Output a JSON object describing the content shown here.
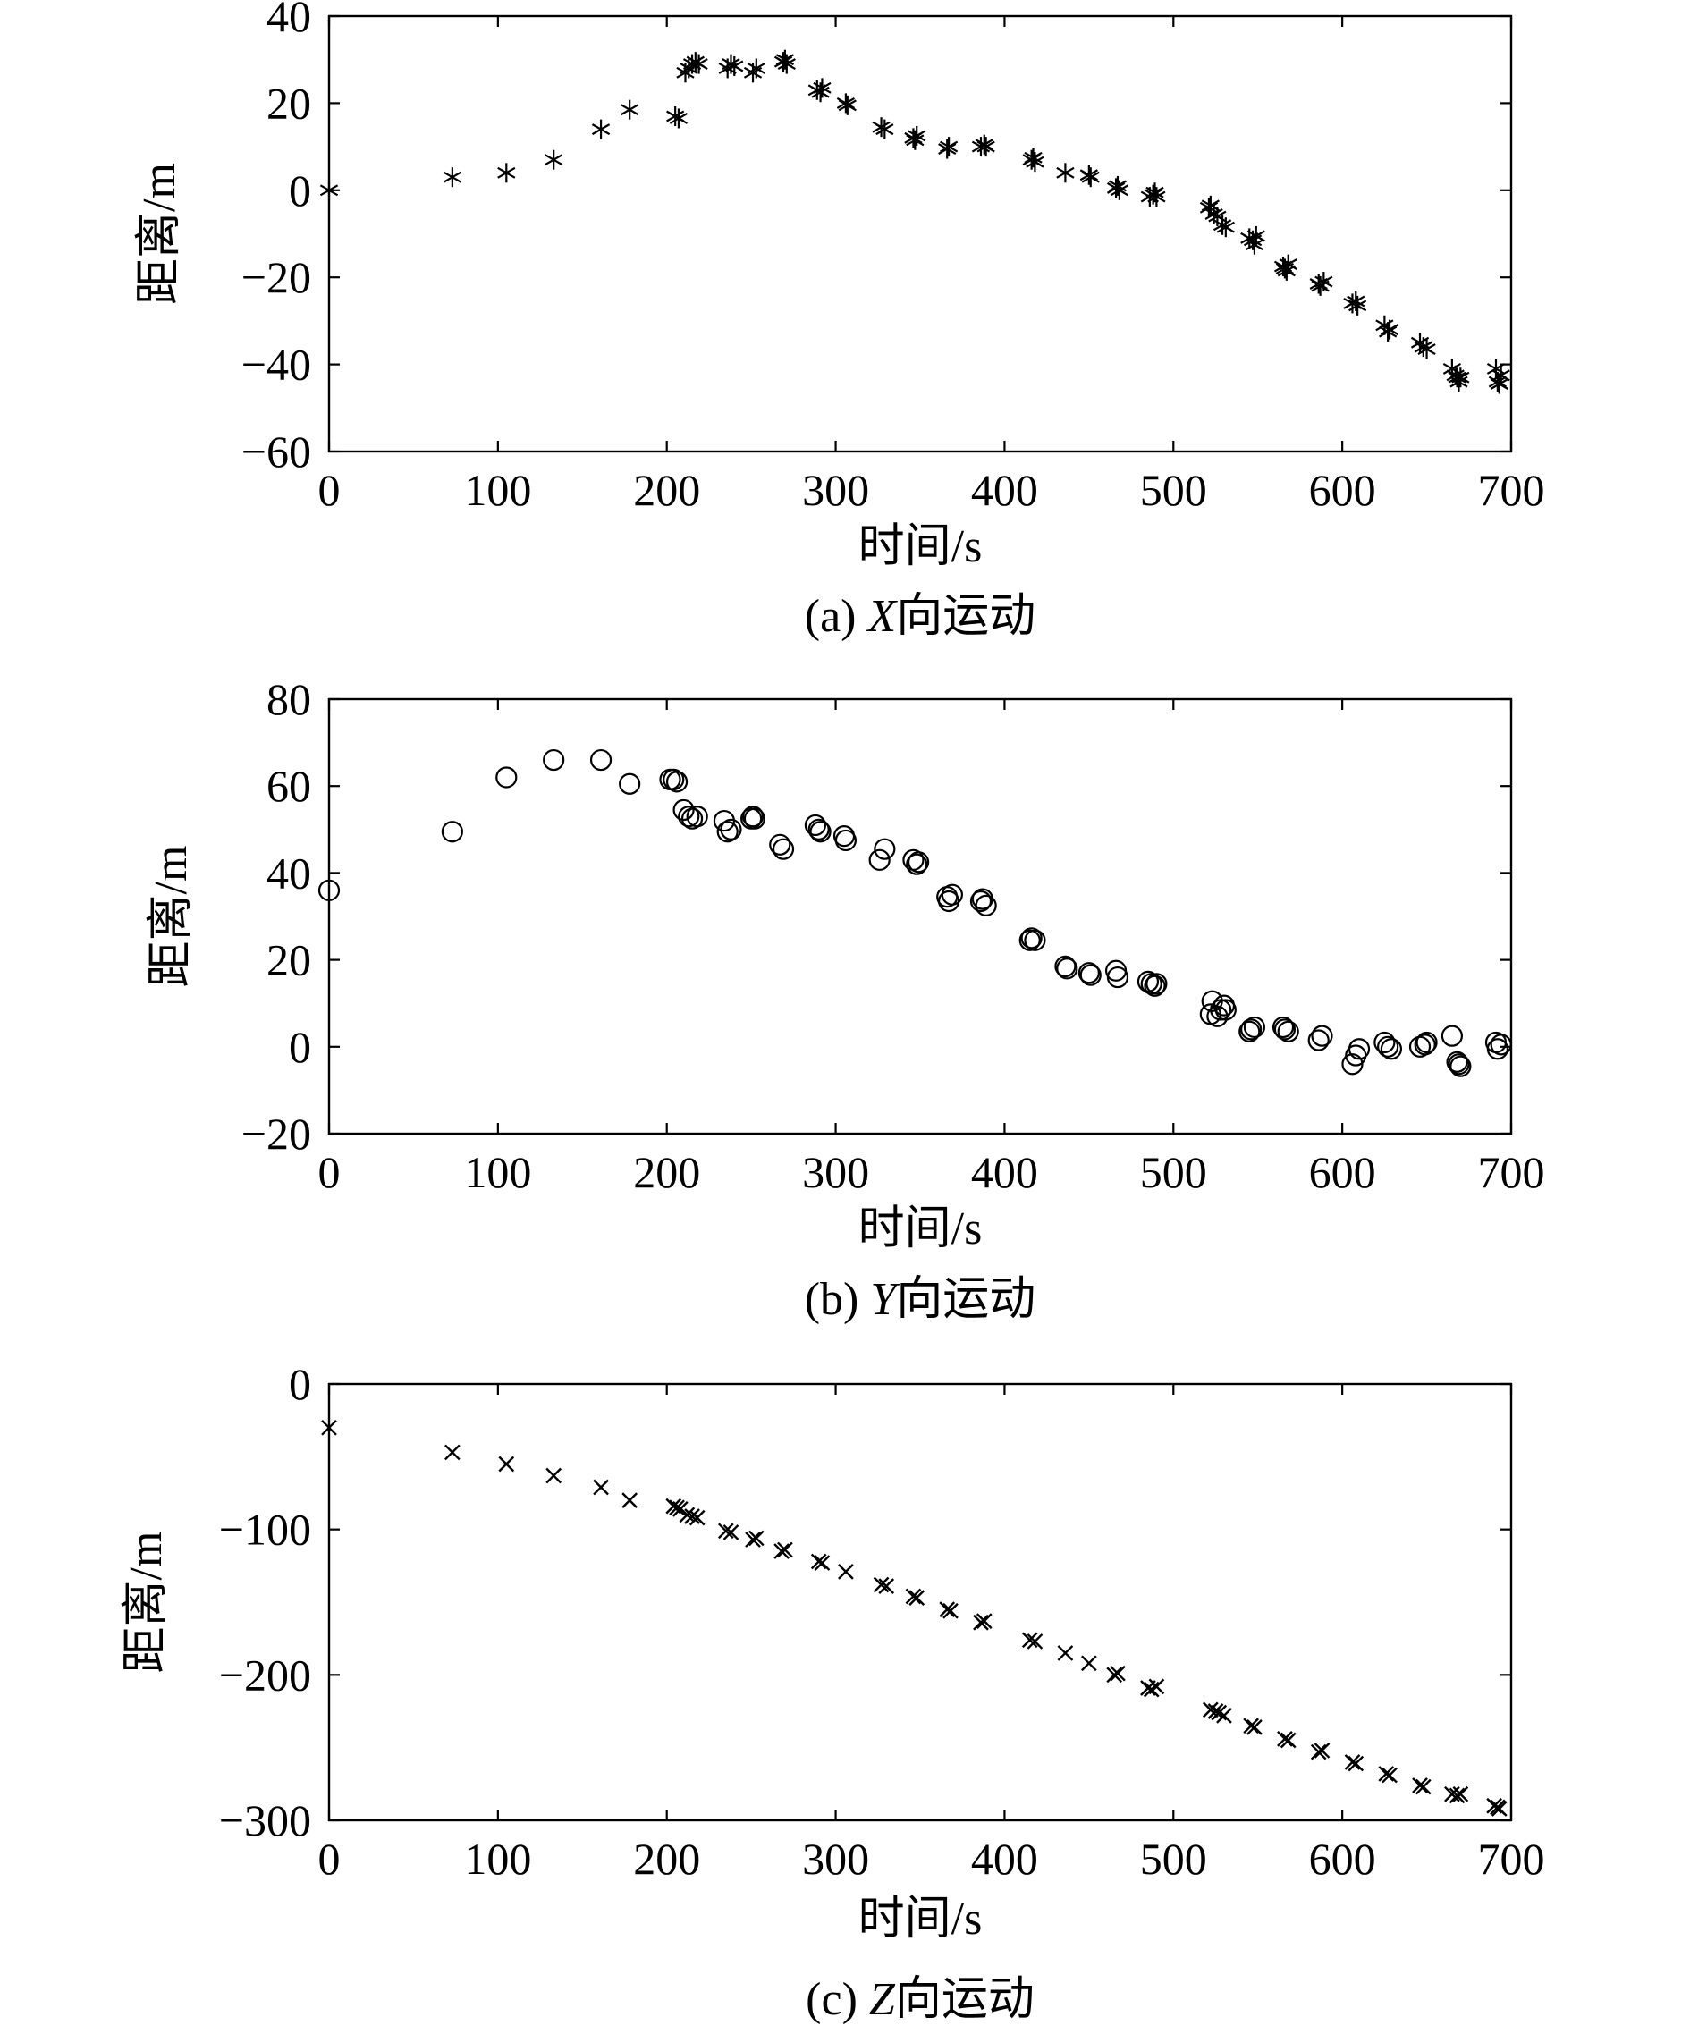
{
  "chart_data": [
    {
      "type": "scatter",
      "marker": "asterisk",
      "caption_prefix": "(a) ",
      "caption_var": "X",
      "caption_suffix": "向运动",
      "xlabel": "时间/s",
      "ylabel": "距离/m",
      "xlim": [
        0,
        700
      ],
      "ylim": [
        -60,
        40
      ],
      "xticks": [
        0,
        100,
        200,
        300,
        400,
        500,
        600,
        700
      ],
      "yticks": [
        -60,
        -40,
        -20,
        0,
        20,
        40
      ],
      "points": [
        [
          0,
          0
        ],
        [
          73,
          3
        ],
        [
          105,
          4
        ],
        [
          133,
          7
        ],
        [
          161,
          14
        ],
        [
          178,
          18.5
        ],
        [
          205,
          17
        ],
        [
          207,
          16.5
        ],
        [
          211,
          27
        ],
        [
          213,
          28
        ],
        [
          215,
          29
        ],
        [
          217,
          29.5
        ],
        [
          219,
          29
        ],
        [
          236,
          28
        ],
        [
          238,
          29
        ],
        [
          240,
          28.5
        ],
        [
          251,
          27
        ],
        [
          253,
          28
        ],
        [
          269,
          29.5
        ],
        [
          270,
          30
        ],
        [
          271,
          29
        ],
        [
          289,
          23
        ],
        [
          291,
          22.5
        ],
        [
          292,
          23.5
        ],
        [
          306,
          20
        ],
        [
          307,
          19.5
        ],
        [
          327,
          14.5
        ],
        [
          329,
          14
        ],
        [
          346,
          12
        ],
        [
          347,
          11.5
        ],
        [
          348,
          12.5
        ],
        [
          366,
          9.5
        ],
        [
          367,
          10
        ],
        [
          386,
          10
        ],
        [
          388,
          10.5
        ],
        [
          389,
          10
        ],
        [
          416,
          7
        ],
        [
          417,
          7.5
        ],
        [
          418,
          6.5
        ],
        [
          436,
          4
        ],
        [
          450,
          3.5
        ],
        [
          451,
          3
        ],
        [
          466,
          0.5
        ],
        [
          467,
          1
        ],
        [
          468,
          0
        ],
        [
          486,
          -1.5
        ],
        [
          488,
          -1
        ],
        [
          489,
          -0.5
        ],
        [
          490,
          -1.5
        ],
        [
          521,
          -4
        ],
        [
          522,
          -3.5
        ],
        [
          524,
          -5.5
        ],
        [
          526,
          -6
        ],
        [
          529,
          -8
        ],
        [
          531,
          -8.5
        ],
        [
          545,
          -11
        ],
        [
          547,
          -11.5
        ],
        [
          548,
          -12.5
        ],
        [
          549,
          -10.5
        ],
        [
          565,
          -17.5
        ],
        [
          566,
          -18
        ],
        [
          567,
          -18.5
        ],
        [
          568,
          -17
        ],
        [
          586,
          -21.5
        ],
        [
          587,
          -22
        ],
        [
          589,
          -21
        ],
        [
          606,
          -26
        ],
        [
          608,
          -25.5
        ],
        [
          609,
          -26.5
        ],
        [
          625,
          -31
        ],
        [
          627,
          -32.5
        ],
        [
          628,
          -32
        ],
        [
          646,
          -35
        ],
        [
          648,
          -36
        ],
        [
          650,
          -36.5
        ],
        [
          665,
          -41
        ],
        [
          667,
          -42.5
        ],
        [
          668,
          -43
        ],
        [
          669,
          -44
        ],
        [
          670,
          -43
        ],
        [
          691,
          -41
        ],
        [
          692,
          -44
        ],
        [
          693,
          -44.5
        ],
        [
          694,
          -42.5
        ]
      ]
    },
    {
      "type": "scatter",
      "marker": "circle",
      "caption_prefix": "(b) ",
      "caption_var": "Y",
      "caption_suffix": "向运动",
      "xlabel": "时间/s",
      "ylabel": "距离/m",
      "xlim": [
        0,
        700
      ],
      "ylim": [
        -20,
        80
      ],
      "xticks": [
        0,
        100,
        200,
        300,
        400,
        500,
        600,
        700
      ],
      "yticks": [
        -20,
        0,
        20,
        40,
        60,
        80
      ],
      "points": [
        [
          0,
          36
        ],
        [
          73,
          49.5
        ],
        [
          105,
          62
        ],
        [
          133,
          66
        ],
        [
          161,
          66
        ],
        [
          178,
          60.5
        ],
        [
          202,
          61.5
        ],
        [
          204,
          61.5
        ],
        [
          206,
          61
        ],
        [
          210,
          54.5
        ],
        [
          213,
          53
        ],
        [
          215,
          52.5
        ],
        [
          218,
          53
        ],
        [
          234,
          52
        ],
        [
          236,
          49.5
        ],
        [
          238,
          50
        ],
        [
          250,
          52.5
        ],
        [
          251,
          53
        ],
        [
          252,
          52.5
        ],
        [
          267,
          46.5
        ],
        [
          269,
          45.5
        ],
        [
          288,
          51
        ],
        [
          290,
          50
        ],
        [
          291,
          49.5
        ],
        [
          305,
          48.5
        ],
        [
          306,
          47.5
        ],
        [
          326,
          43
        ],
        [
          329,
          45.5
        ],
        [
          346,
          43
        ],
        [
          348,
          42
        ],
        [
          349,
          42.5
        ],
        [
          366,
          34.5
        ],
        [
          367,
          33.5
        ],
        [
          369,
          35
        ],
        [
          386,
          33.5
        ],
        [
          387,
          34
        ],
        [
          389,
          32.5
        ],
        [
          415,
          24.5
        ],
        [
          416,
          25
        ],
        [
          418,
          24.5
        ],
        [
          436,
          18.5
        ],
        [
          437,
          18
        ],
        [
          450,
          17
        ],
        [
          451,
          16.5
        ],
        [
          466,
          17.5
        ],
        [
          467,
          16
        ],
        [
          485,
          15
        ],
        [
          487,
          14.5
        ],
        [
          489,
          14
        ],
        [
          490,
          14.5
        ],
        [
          522,
          7.5
        ],
        [
          523,
          10.5
        ],
        [
          526,
          7
        ],
        [
          528,
          8.5
        ],
        [
          530,
          9.5
        ],
        [
          531,
          8.5
        ],
        [
          545,
          3.5
        ],
        [
          546,
          4
        ],
        [
          548,
          4.5
        ],
        [
          565,
          4.5
        ],
        [
          566,
          4
        ],
        [
          568,
          3.5
        ],
        [
          586,
          1.5
        ],
        [
          588,
          2.5
        ],
        [
          606,
          -4
        ],
        [
          608,
          -2
        ],
        [
          610,
          -0.5
        ],
        [
          625,
          1
        ],
        [
          627,
          0
        ],
        [
          629,
          -0.5
        ],
        [
          646,
          0
        ],
        [
          649,
          0.5
        ],
        [
          650,
          1
        ],
        [
          665,
          2.5
        ],
        [
          668,
          -3.5
        ],
        [
          669,
          -4
        ],
        [
          670,
          -4.5
        ],
        [
          691,
          1
        ],
        [
          692,
          -0.5
        ],
        [
          694,
          0.5
        ]
      ]
    },
    {
      "type": "scatter",
      "marker": "x",
      "caption_prefix": "(c) ",
      "caption_var": "Z",
      "caption_suffix": "向运动",
      "xlabel": "时间/s",
      "ylabel": "距离/m",
      "xlim": [
        0,
        700
      ],
      "ylim": [
        -300,
        0
      ],
      "xticks": [
        0,
        100,
        200,
        300,
        400,
        500,
        600,
        700
      ],
      "yticks": [
        -300,
        -200,
        -100,
        0
      ],
      "points": [
        [
          0,
          -30
        ],
        [
          73,
          -47
        ],
        [
          105,
          -55
        ],
        [
          133,
          -63
        ],
        [
          161,
          -71
        ],
        [
          178,
          -80
        ],
        [
          204,
          -84
        ],
        [
          206,
          -85
        ],
        [
          208,
          -86
        ],
        [
          212,
          -90
        ],
        [
          215,
          -91
        ],
        [
          218,
          -92
        ],
        [
          235,
          -101
        ],
        [
          238,
          -102
        ],
        [
          251,
          -107
        ],
        [
          253,
          -106
        ],
        [
          268,
          -115
        ],
        [
          270,
          -114
        ],
        [
          290,
          -122
        ],
        [
          292,
          -123
        ],
        [
          306,
          -129
        ],
        [
          327,
          -138
        ],
        [
          330,
          -139
        ],
        [
          346,
          -146
        ],
        [
          348,
          -147
        ],
        [
          366,
          -155
        ],
        [
          368,
          -156
        ],
        [
          386,
          -164
        ],
        [
          388,
          -163
        ],
        [
          415,
          -176
        ],
        [
          418,
          -177
        ],
        [
          436,
          -185
        ],
        [
          450,
          -192
        ],
        [
          465,
          -200
        ],
        [
          467,
          -199
        ],
        [
          485,
          -209
        ],
        [
          487,
          -210
        ],
        [
          490,
          -208
        ],
        [
          522,
          -224
        ],
        [
          525,
          -225
        ],
        [
          527,
          -226
        ],
        [
          530,
          -228
        ],
        [
          546,
          -235
        ],
        [
          548,
          -236
        ],
        [
          566,
          -244
        ],
        [
          568,
          -245
        ],
        [
          586,
          -253
        ],
        [
          588,
          -252
        ],
        [
          606,
          -260
        ],
        [
          608,
          -261
        ],
        [
          626,
          -268
        ],
        [
          628,
          -269
        ],
        [
          646,
          -276
        ],
        [
          648,
          -277
        ],
        [
          665,
          -282
        ],
        [
          668,
          -283
        ],
        [
          670,
          -282
        ],
        [
          690,
          -290
        ],
        [
          692,
          -291
        ],
        [
          693,
          -292
        ]
      ]
    }
  ]
}
